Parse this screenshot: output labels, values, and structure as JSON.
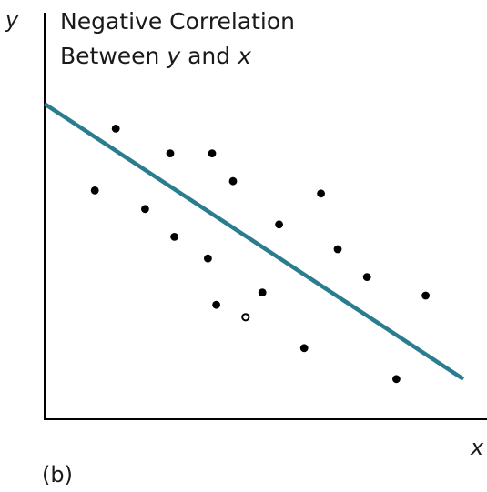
{
  "chart_data": {
    "type": "scatter",
    "title_line1": "Negative Correlation",
    "title_line2_parts": [
      "Between ",
      "y",
      " and ",
      "x"
    ],
    "xlabel": "x",
    "ylabel": "y",
    "panel_label": "(b)",
    "xlim": [
      0,
      100
    ],
    "ylim": [
      0,
      100
    ],
    "points": [
      {
        "x": 12,
        "y": 74
      },
      {
        "x": 17,
        "y": 94
      },
      {
        "x": 24,
        "y": 68
      },
      {
        "x": 30,
        "y": 86
      },
      {
        "x": 31,
        "y": 59
      },
      {
        "x": 39,
        "y": 52
      },
      {
        "x": 40,
        "y": 86
      },
      {
        "x": 41,
        "y": 37
      },
      {
        "x": 45,
        "y": 77
      },
      {
        "x": 48,
        "y": 33,
        "hollow": true
      },
      {
        "x": 52,
        "y": 41
      },
      {
        "x": 56,
        "y": 63
      },
      {
        "x": 62,
        "y": 23
      },
      {
        "x": 66,
        "y": 73
      },
      {
        "x": 70,
        "y": 55
      },
      {
        "x": 77,
        "y": 46
      },
      {
        "x": 84,
        "y": 13
      },
      {
        "x": 91,
        "y": 40
      }
    ],
    "trend_line": {
      "x": [
        0,
        100
      ],
      "y": [
        102,
        13
      ]
    },
    "grid": false,
    "legend": "none",
    "colors": {
      "trend": "#2a7d8f",
      "points": "#000000",
      "axis": "#000000"
    }
  }
}
